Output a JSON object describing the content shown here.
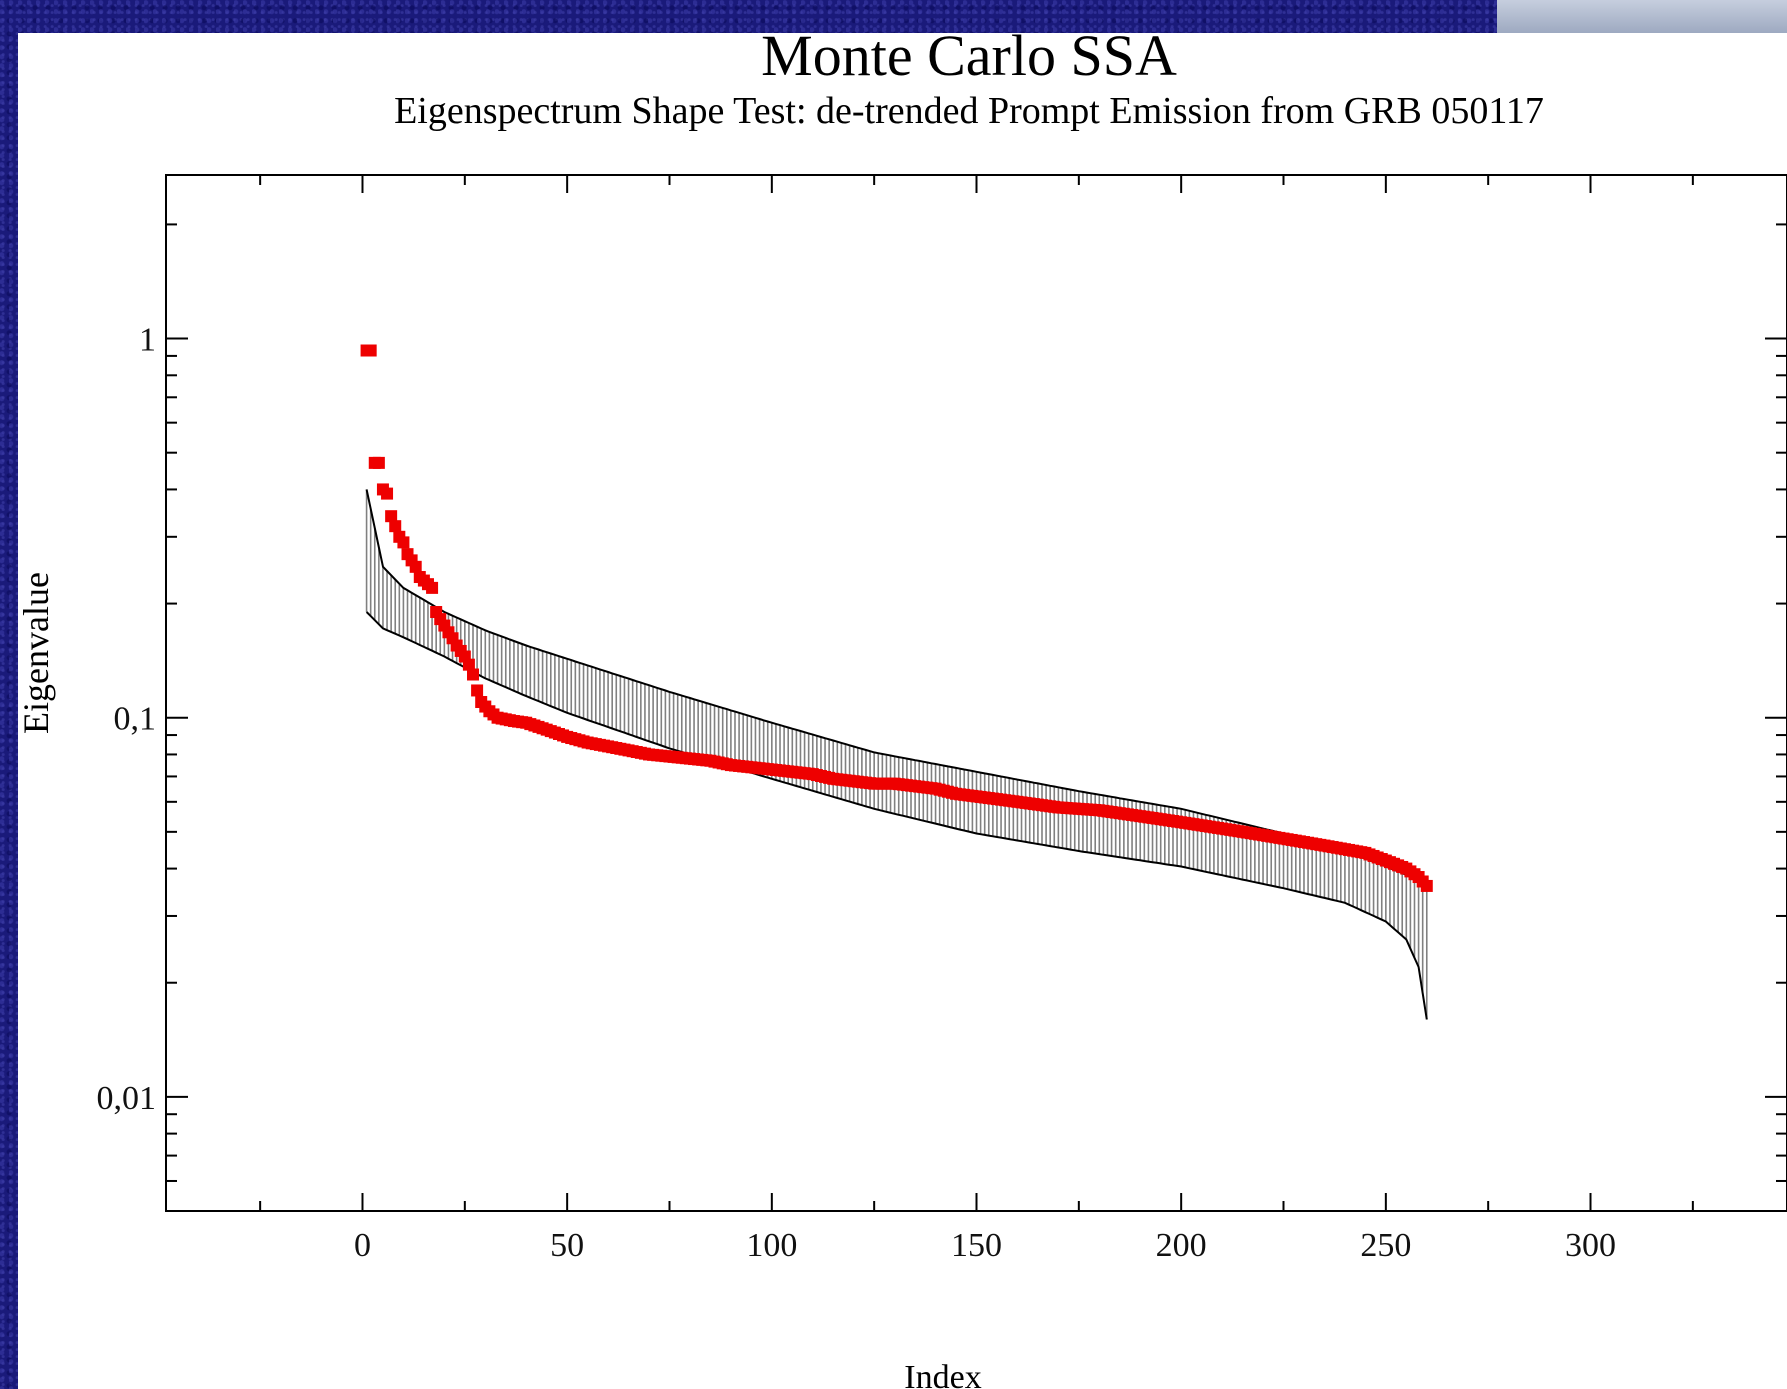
{
  "chart_data": {
    "type": "scatter",
    "title": "Monte Carlo SSA",
    "subtitle": "Eigenspectrum Shape Test: de-trended Prompt Emission from GRB 050117",
    "xlabel": "Index",
    "ylabel": "Eigenvalue",
    "xlim": [
      -48,
      348
    ],
    "ylim": [
      0.005,
      2.7
    ],
    "yscale": "log",
    "x_ticks": [
      0,
      50,
      100,
      150,
      200,
      250,
      300
    ],
    "x_tick_labels": [
      "0",
      "50",
      "100",
      "150",
      "200",
      "250",
      "300"
    ],
    "y_ticks": [
      0.01,
      0.1,
      1
    ],
    "y_tick_labels": [
      "0,01",
      "0,1",
      "1"
    ],
    "grid": false,
    "series": [
      {
        "kind": "error-band",
        "color": "#808080",
        "edge_color": "#000000",
        "x": [
          1,
          5,
          10,
          20,
          30,
          40,
          50,
          75,
          100,
          125,
          150,
          175,
          200,
          225,
          240,
          250,
          255,
          258,
          260
        ],
        "lower": [
          0.19,
          0.172,
          0.163,
          0.145,
          0.127,
          0.114,
          0.103,
          0.083,
          0.069,
          0.0575,
          0.0495,
          0.0445,
          0.0405,
          0.0355,
          0.0325,
          0.029,
          0.026,
          0.022,
          0.016
        ],
        "upper": [
          0.4,
          0.25,
          0.22,
          0.19,
          0.17,
          0.155,
          0.143,
          0.117,
          0.097,
          0.081,
          0.072,
          0.064,
          0.0575,
          0.0495,
          0.0445,
          0.0405,
          0.0385,
          0.0375,
          0.036
        ]
      },
      {
        "kind": "markers",
        "color": "#ee0000",
        "x": [
          1,
          2,
          3,
          4,
          5,
          6,
          7,
          8,
          9,
          10,
          11,
          12,
          13,
          14,
          15,
          16,
          17,
          18,
          19,
          20,
          21,
          22,
          23,
          24,
          25,
          26,
          27,
          28,
          29,
          30,
          31,
          32,
          33,
          35,
          37,
          40,
          45,
          50,
          55,
          60,
          65,
          70,
          75,
          80,
          85,
          90,
          95,
          100,
          105,
          110,
          115,
          120,
          125,
          130,
          135,
          140,
          145,
          150,
          155,
          160,
          165,
          170,
          175,
          180,
          185,
          190,
          195,
          200,
          205,
          210,
          215,
          220,
          225,
          230,
          235,
          240,
          245,
          250,
          255,
          258,
          260
        ],
        "y": [
          0.93,
          0.93,
          0.47,
          0.47,
          0.4,
          0.39,
          0.34,
          0.32,
          0.3,
          0.29,
          0.27,
          0.26,
          0.25,
          0.235,
          0.23,
          0.225,
          0.22,
          0.19,
          0.182,
          0.175,
          0.168,
          0.162,
          0.155,
          0.15,
          0.145,
          0.138,
          0.13,
          0.118,
          0.11,
          0.107,
          0.104,
          0.102,
          0.1,
          0.099,
          0.098,
          0.097,
          0.093,
          0.089,
          0.086,
          0.084,
          0.082,
          0.08,
          0.079,
          0.078,
          0.077,
          0.075,
          0.074,
          0.073,
          0.072,
          0.071,
          0.069,
          0.068,
          0.067,
          0.067,
          0.066,
          0.065,
          0.063,
          0.062,
          0.061,
          0.06,
          0.059,
          0.058,
          0.0575,
          0.057,
          0.056,
          0.055,
          0.054,
          0.053,
          0.052,
          0.051,
          0.05,
          0.049,
          0.048,
          0.047,
          0.046,
          0.045,
          0.044,
          0.042,
          0.04,
          0.038,
          0.036
        ]
      }
    ]
  }
}
